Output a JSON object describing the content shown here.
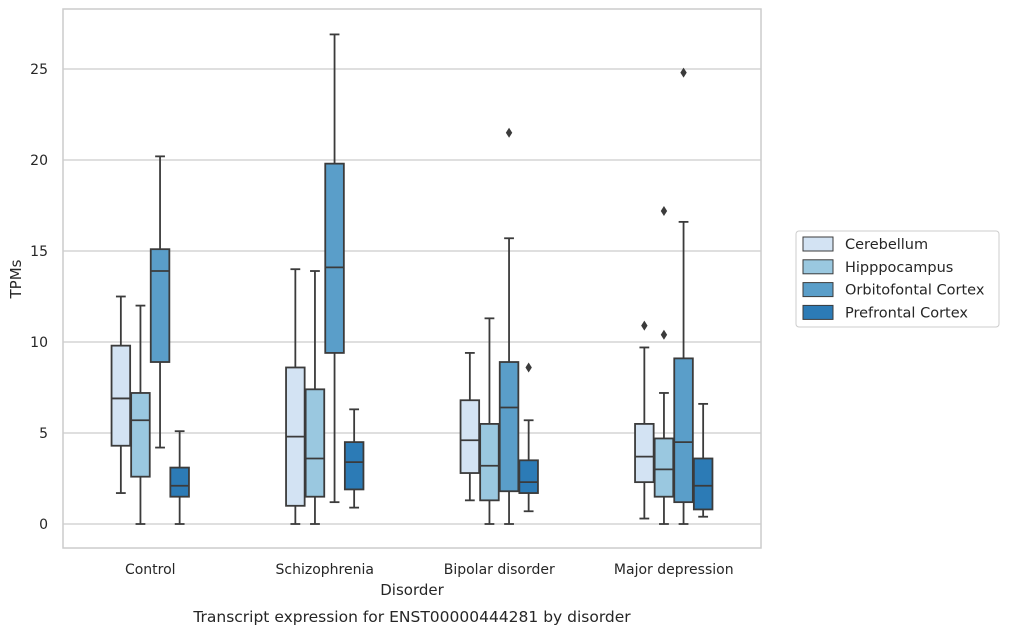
{
  "caption": "Transcript expression for ENST00000444281 by disorder",
  "chart_data": {
    "type": "box",
    "xlabel": "Disorder",
    "ylabel": "TPMs",
    "ylim": [
      -1.2,
      28.3
    ],
    "yticks": [
      0,
      5,
      10,
      15,
      20,
      25
    ],
    "grid": "horizontal",
    "legend_position": "right",
    "categories": [
      "Control",
      "Schizophrenia",
      "Bipolar disorder",
      "Major depression"
    ],
    "series": [
      {
        "name": "Cerebellum",
        "color": "#d3e3f3",
        "boxes": [
          {
            "whisker_low": 1.7,
            "q1": 4.3,
            "median": 6.9,
            "q3": 9.8,
            "whisker_high": 12.5,
            "outliers": []
          },
          {
            "whisker_low": 0.0,
            "q1": 1.0,
            "median": 4.8,
            "q3": 8.6,
            "whisker_high": 14.0,
            "outliers": []
          },
          {
            "whisker_low": 1.3,
            "q1": 2.8,
            "median": 4.6,
            "q3": 6.8,
            "whisker_high": 9.4,
            "outliers": []
          },
          {
            "whisker_low": 0.3,
            "q1": 2.3,
            "median": 3.7,
            "q3": 5.5,
            "whisker_high": 9.7,
            "outliers": [
              10.9
            ]
          }
        ]
      },
      {
        "name": "Hipppocampus",
        "color": "#9ac8e0",
        "boxes": [
          {
            "whisker_low": 0.0,
            "q1": 2.6,
            "median": 5.7,
            "q3": 7.2,
            "whisker_high": 12.0,
            "outliers": []
          },
          {
            "whisker_low": 0.0,
            "q1": 1.5,
            "median": 3.6,
            "q3": 7.4,
            "whisker_high": 13.9,
            "outliers": []
          },
          {
            "whisker_low": 0.0,
            "q1": 1.3,
            "median": 3.2,
            "q3": 5.5,
            "whisker_high": 11.3,
            "outliers": []
          },
          {
            "whisker_low": 0.0,
            "q1": 1.5,
            "median": 3.0,
            "q3": 4.7,
            "whisker_high": 7.2,
            "outliers": [
              10.4,
              17.2
            ]
          }
        ]
      },
      {
        "name": "Orbitofontal Cortex",
        "color": "#5a9ec9",
        "boxes": [
          {
            "whisker_low": 4.2,
            "q1": 8.9,
            "median": 13.9,
            "q3": 15.1,
            "whisker_high": 20.2,
            "outliers": []
          },
          {
            "whisker_low": 1.2,
            "q1": 9.4,
            "median": 14.1,
            "q3": 19.8,
            "whisker_high": 26.9,
            "outliers": []
          },
          {
            "whisker_low": 0.0,
            "q1": 1.8,
            "median": 6.4,
            "q3": 8.9,
            "whisker_high": 15.7,
            "outliers": [
              21.5
            ]
          },
          {
            "whisker_low": 0.0,
            "q1": 1.2,
            "median": 4.5,
            "q3": 9.1,
            "whisker_high": 16.6,
            "outliers": [
              24.8
            ]
          }
        ]
      },
      {
        "name": "Prefrontal Cortex",
        "color": "#2c7bb6",
        "boxes": [
          {
            "whisker_low": 0.0,
            "q1": 1.5,
            "median": 2.1,
            "q3": 3.1,
            "whisker_high": 5.1,
            "outliers": []
          },
          {
            "whisker_low": 0.9,
            "q1": 1.9,
            "median": 3.4,
            "q3": 4.5,
            "whisker_high": 6.3,
            "outliers": []
          },
          {
            "whisker_low": 0.7,
            "q1": 1.7,
            "median": 2.3,
            "q3": 3.5,
            "whisker_high": 5.7,
            "outliers": [
              8.6
            ]
          },
          {
            "whisker_low": 0.4,
            "q1": 0.8,
            "median": 2.1,
            "q3": 3.6,
            "whisker_high": 6.6,
            "outliers": []
          }
        ]
      }
    ]
  }
}
